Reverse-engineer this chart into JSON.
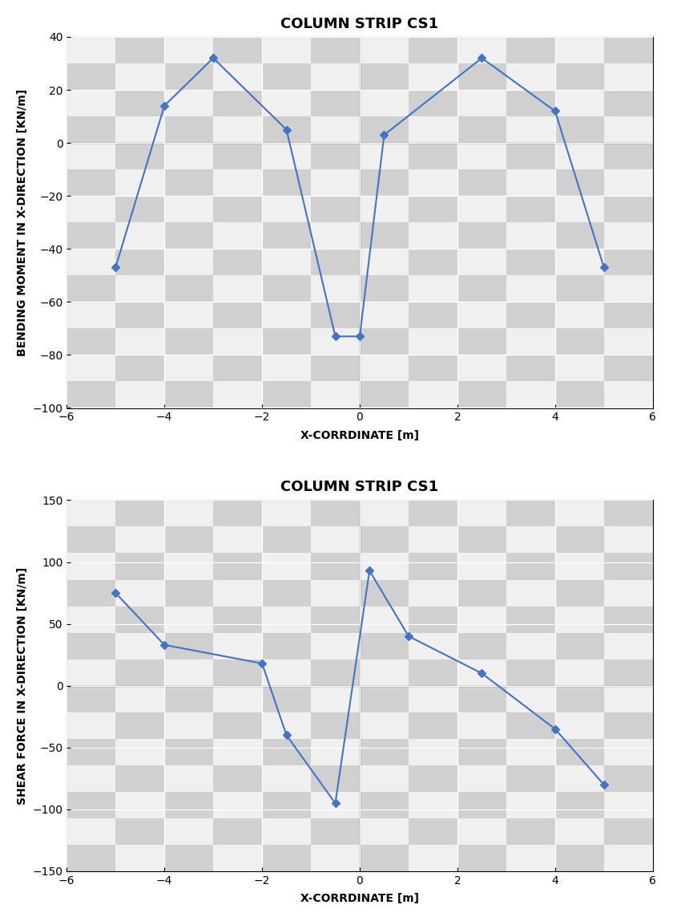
{
  "chart1": {
    "title": "COLUMN STRIP CS1",
    "xlabel": "X-CORRDINATE [m]",
    "ylabel": "BENDING MOMENT IN X-DIRECTION [KN/m]",
    "x": [
      -5,
      -4,
      -3,
      -1.5,
      -0.5,
      0,
      0.5,
      2.5,
      4,
      5
    ],
    "y": [
      -47,
      14,
      32,
      5,
      -73,
      -73,
      3,
      32,
      12,
      -47
    ],
    "xlim": [
      -6,
      6
    ],
    "ylim": [
      -100,
      40
    ],
    "yticks": [
      -100,
      -80,
      -60,
      -40,
      -20,
      0,
      20,
      40
    ],
    "xticks": [
      -6,
      -4,
      -2,
      0,
      2,
      4,
      6
    ],
    "line_color": "#4472C4",
    "marker": "D",
    "markersize": 5
  },
  "chart2": {
    "title": "COLUMN STRIP CS1",
    "xlabel": "X-CORRDINATE [m]",
    "ylabel": "SHEAR FORCE IN X-DIRECTION [KN/m]",
    "x": [
      -5,
      -4,
      -2,
      -1.5,
      -0.5,
      0.2,
      1,
      2.5,
      4,
      5
    ],
    "y": [
      75,
      33,
      18,
      -40,
      -95,
      93,
      40,
      10,
      -35,
      -80
    ],
    "xlim": [
      -6,
      6
    ],
    "ylim": [
      -150,
      150
    ],
    "yticks": [
      -150,
      -100,
      -50,
      0,
      50,
      100,
      150
    ],
    "xticks": [
      -6,
      -4,
      -2,
      0,
      2,
      4,
      6
    ],
    "line_color": "#4472C4",
    "marker": "D",
    "markersize": 5
  },
  "grid_color": "#c0c0c0",
  "title_fontsize": 13,
  "label_fontsize": 10,
  "tick_fontsize": 10,
  "title_fontweight": "bold",
  "label_fontweight": "bold",
  "checker_color1": "#d0d0d0",
  "checker_color2": "#f0f0f0"
}
